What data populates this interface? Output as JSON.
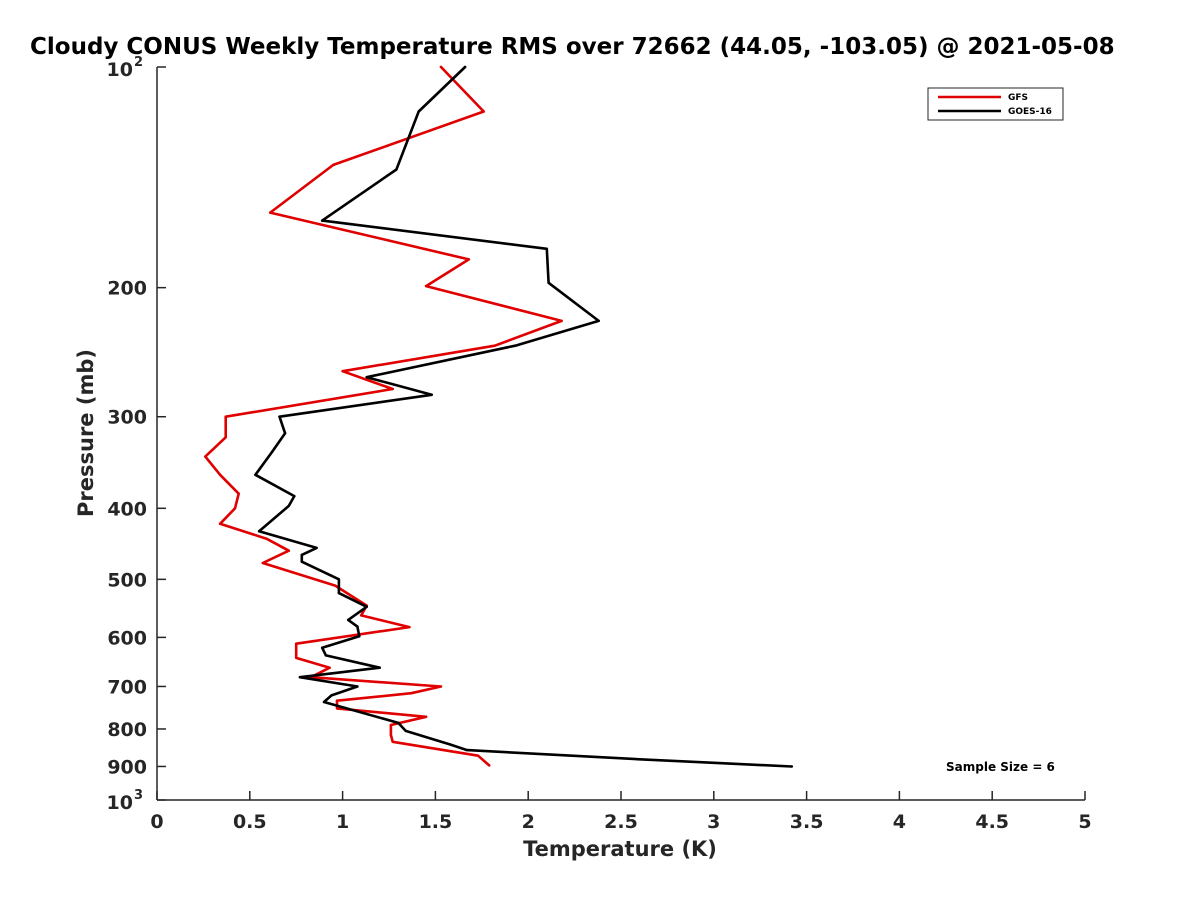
{
  "chart_data": {
    "type": "line",
    "title": "Cloudy CONUS Weekly Temperature RMS over 72662 (44.05, -103.05) @ 2021-05-08",
    "xlabel": "Temperature (K)",
    "ylabel": "Pressure (mb)",
    "xlim": [
      0,
      5
    ],
    "ylim": [
      100,
      1000
    ],
    "y_scale": "log",
    "y_reversed": true,
    "grid": false,
    "legend_placement": "top-right",
    "x_ticks": [
      0,
      0.5,
      1,
      1.5,
      2,
      2.5,
      3,
      3.5,
      4,
      4.5,
      5
    ],
    "x_tick_labels": [
      "0",
      "0.5",
      "1",
      "1.5",
      "2",
      "2.5",
      "3",
      "3.5",
      "4",
      "4.5",
      "5"
    ],
    "y_ticks": [
      {
        "value": 100,
        "base": "10",
        "exp": "2"
      },
      {
        "value": 200,
        "label": "200"
      },
      {
        "value": 300,
        "label": "300"
      },
      {
        "value": 400,
        "label": "400"
      },
      {
        "value": 500,
        "label": "500"
      },
      {
        "value": 600,
        "label": "600"
      },
      {
        "value": 700,
        "label": "700"
      },
      {
        "value": 800,
        "label": "800"
      },
      {
        "value": 900,
        "label": "900"
      },
      {
        "value": 1000,
        "base": "10",
        "exp": "3"
      }
    ],
    "annotation": "Sample Size = 6",
    "series": [
      {
        "name": "GFS",
        "color": "#e00000",
        "points": [
          [
            1.53,
            100
          ],
          [
            1.76,
            115
          ],
          [
            0.95,
            136
          ],
          [
            0.61,
            158
          ],
          [
            1.68,
            183
          ],
          [
            1.45,
            199
          ],
          [
            2.18,
            222
          ],
          [
            1.82,
            240
          ],
          [
            1.0,
            260
          ],
          [
            1.27,
            275
          ],
          [
            0.37,
            300
          ],
          [
            0.37,
            320
          ],
          [
            0.26,
            340
          ],
          [
            0.34,
            360
          ],
          [
            0.44,
            382
          ],
          [
            0.42,
            400
          ],
          [
            0.34,
            420
          ],
          [
            0.59,
            440
          ],
          [
            0.71,
            457
          ],
          [
            0.57,
            475
          ],
          [
            0.96,
            510
          ],
          [
            1.13,
            543
          ],
          [
            1.1,
            560
          ],
          [
            1.36,
            581
          ],
          [
            0.75,
            612
          ],
          [
            0.75,
            640
          ],
          [
            0.93,
            660
          ],
          [
            0.83,
            680
          ],
          [
            1.53,
            700
          ],
          [
            1.37,
            715
          ],
          [
            0.97,
            732
          ],
          [
            0.97,
            750
          ],
          [
            1.45,
            770
          ],
          [
            1.26,
            790
          ],
          [
            1.26,
            815
          ],
          [
            1.27,
            833
          ],
          [
            1.73,
            870
          ],
          [
            1.79,
            897
          ]
        ]
      },
      {
        "name": "GOES-16",
        "color": "#000000",
        "points": [
          [
            1.66,
            100
          ],
          [
            1.41,
            115
          ],
          [
            1.29,
            138
          ],
          [
            0.89,
            162
          ],
          [
            2.1,
            177
          ],
          [
            2.11,
            197
          ],
          [
            2.38,
            222
          ],
          [
            1.93,
            240
          ],
          [
            1.13,
            265
          ],
          [
            1.48,
            280
          ],
          [
            0.66,
            300
          ],
          [
            0.69,
            316
          ],
          [
            0.62,
            335
          ],
          [
            0.53,
            360
          ],
          [
            0.74,
            385
          ],
          [
            0.71,
            397
          ],
          [
            0.55,
            430
          ],
          [
            0.86,
            453
          ],
          [
            0.78,
            463
          ],
          [
            0.78,
            473
          ],
          [
            0.98,
            500
          ],
          [
            0.98,
            522
          ],
          [
            1.13,
            545
          ],
          [
            1.03,
            568
          ],
          [
            1.08,
            580
          ],
          [
            1.09,
            598
          ],
          [
            0.89,
            620
          ],
          [
            0.91,
            635
          ],
          [
            1.2,
            660
          ],
          [
            0.77,
            680
          ],
          [
            1.08,
            700
          ],
          [
            0.94,
            720
          ],
          [
            0.9,
            735
          ],
          [
            1.3,
            785
          ],
          [
            1.34,
            805
          ],
          [
            1.58,
            840
          ],
          [
            1.67,
            855
          ],
          [
            2.6,
            880
          ],
          [
            3.42,
            900
          ]
        ]
      }
    ]
  }
}
